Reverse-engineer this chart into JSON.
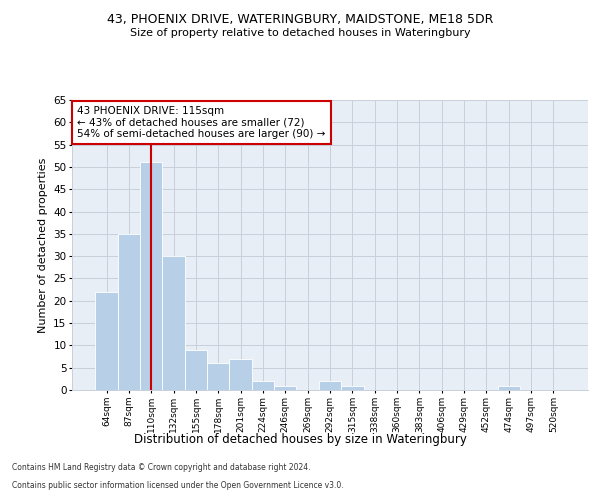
{
  "title1": "43, PHOENIX DRIVE, WATERINGBURY, MAIDSTONE, ME18 5DR",
  "title2": "Size of property relative to detached houses in Wateringbury",
  "xlabel": "Distribution of detached houses by size in Wateringbury",
  "ylabel": "Number of detached properties",
  "categories": [
    "64sqm",
    "87sqm",
    "110sqm",
    "132sqm",
    "155sqm",
    "178sqm",
    "201sqm",
    "224sqm",
    "246sqm",
    "269sqm",
    "292sqm",
    "315sqm",
    "338sqm",
    "360sqm",
    "383sqm",
    "406sqm",
    "429sqm",
    "452sqm",
    "474sqm",
    "497sqm",
    "520sqm"
  ],
  "values": [
    22,
    35,
    51,
    30,
    9,
    6,
    7,
    2,
    1,
    0,
    2,
    1,
    0,
    0,
    0,
    0,
    0,
    0,
    1,
    0,
    0
  ],
  "bar_color": "#b8cfe8",
  "grid_color": "#c8d0dc",
  "bg_color": "#e8eef6",
  "vline_x_index": 2,
  "vline_color": "#cc0000",
  "annotation_text": "43 PHOENIX DRIVE: 115sqm\n← 43% of detached houses are smaller (72)\n54% of semi-detached houses are larger (90) →",
  "annotation_box_facecolor": "white",
  "annotation_box_edgecolor": "#cc0000",
  "ylim": [
    0,
    65
  ],
  "yticks": [
    0,
    5,
    10,
    15,
    20,
    25,
    30,
    35,
    40,
    45,
    50,
    55,
    60,
    65
  ],
  "footer1": "Contains HM Land Registry data © Crown copyright and database right 2024.",
  "footer2": "Contains public sector information licensed under the Open Government Licence v3.0."
}
